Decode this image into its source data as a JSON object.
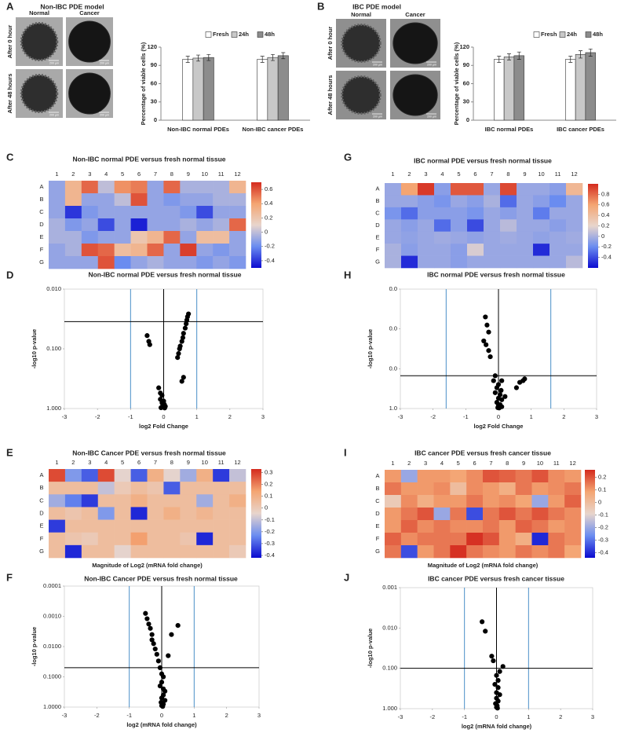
{
  "micrographs": [
    {
      "panel": "A",
      "title": "Non-IBC PDE model",
      "columns": [
        "Normal",
        "Cancer"
      ],
      "rows": [
        "After 0 hour",
        "After 48 hours"
      ],
      "scale_bar": "200 µm"
    },
    {
      "panel": "B",
      "title": "IBC PDE model",
      "columns": [
        "Normal",
        "Cancer"
      ],
      "rows": [
        "After 0 hour",
        "After 48 hours"
      ],
      "scale_bar": "200 µm"
    }
  ],
  "chart_data": [
    {
      "type": "bar",
      "ylabel": "Percentage of viable cells (%)",
      "categories": [
        "Non-IBC normal PDEs",
        "Non-IBC cancer PDEs"
      ],
      "series": [
        {
          "name": "Fresh",
          "color": "#ffffff",
          "values": [
            100,
            100
          ],
          "errors": [
            5,
            5
          ]
        },
        {
          "name": "24h",
          "color": "#c8c8c8",
          "values": [
            102,
            103
          ],
          "errors": [
            5,
            5
          ]
        },
        {
          "name": "48h",
          "color": "#8c8c8c",
          "values": [
            103,
            106
          ],
          "errors": [
            5,
            5
          ]
        }
      ],
      "ylim": [
        0,
        120
      ],
      "yticks": [
        0,
        30,
        60,
        90,
        120
      ],
      "legend": "top"
    },
    {
      "type": "bar",
      "ylabel": "Percentage of viable cells (%)",
      "categories": [
        "IBC normal PDEs",
        "IBC cancer PDEs"
      ],
      "series": [
        {
          "name": "Fresh",
          "color": "#ffffff",
          "values": [
            100,
            100
          ],
          "errors": [
            5,
            5
          ]
        },
        {
          "name": "24h",
          "color": "#c8c8c8",
          "values": [
            104,
            108
          ],
          "errors": [
            5,
            6
          ]
        },
        {
          "name": "48h",
          "color": "#8c8c8c",
          "values": [
            106,
            111
          ],
          "errors": [
            6,
            6
          ]
        }
      ],
      "ylim": [
        0,
        120
      ],
      "yticks": [
        0,
        30,
        60,
        90,
        120
      ],
      "legend": "top"
    },
    {
      "type": "heatmap",
      "panel": "C",
      "title": "Non-IBC normal PDE versus fresh normal tissue",
      "x_categories": [
        "1",
        "2",
        "3",
        "4",
        "5",
        "6",
        "7",
        "8",
        "9",
        "10",
        "11",
        "12"
      ],
      "y_categories": [
        "A",
        "B",
        "C",
        "D",
        "E",
        "F",
        "G"
      ],
      "z": [
        [
          -0.1,
          0.3,
          0.55,
          0.0,
          0.45,
          0.5,
          -0.1,
          0.55,
          -0.05,
          -0.05,
          -0.05,
          0.3
        ],
        [
          -0.1,
          0.3,
          -0.1,
          -0.1,
          0.0,
          0.6,
          -0.1,
          -0.15,
          -0.1,
          -0.1,
          -0.05,
          -0.05
        ],
        [
          -0.1,
          -0.4,
          -0.15,
          -0.1,
          -0.1,
          -0.1,
          -0.1,
          -0.1,
          -0.15,
          -0.35,
          -0.1,
          -0.1
        ],
        [
          -0.05,
          -0.15,
          -0.1,
          -0.35,
          -0.1,
          -0.45,
          -0.1,
          -0.1,
          -0.05,
          -0.1,
          -0.05,
          0.55
        ],
        [
          -0.05,
          -0.05,
          -0.15,
          -0.1,
          -0.1,
          0.2,
          0.3,
          0.55,
          -0.1,
          0.25,
          0.25,
          -0.1
        ],
        [
          -0.1,
          -0.05,
          0.6,
          0.55,
          0.25,
          0.3,
          0.55,
          -0.1,
          0.65,
          -0.1,
          -0.15,
          -0.1
        ],
        [
          -0.1,
          -0.1,
          -0.1,
          0.6,
          -0.2,
          -0.1,
          -0.05,
          -0.1,
          -0.1,
          -0.15,
          -0.1,
          -0.15
        ]
      ],
      "zlim": [
        -0.5,
        0.7
      ],
      "zticks": [
        0.6,
        0.4,
        0.2,
        0,
        -0.2,
        -0.4
      ],
      "colormap": [
        "#0b0bd0",
        "#6a8cf0",
        "#e8d5cc",
        "#f4a572",
        "#d42a1e"
      ]
    },
    {
      "type": "heatmap",
      "panel": "G",
      "title": "IBC normal PDE versus fresh normal tissue",
      "x_categories": [
        "1",
        "2",
        "3",
        "4",
        "5",
        "6",
        "7",
        "8",
        "9",
        "10",
        "11",
        "12"
      ],
      "y_categories": [
        "A",
        "B",
        "C",
        "D",
        "E",
        "F",
        "G"
      ],
      "z": [
        [
          -0.05,
          0.6,
          0.95,
          -0.1,
          0.85,
          0.85,
          -0.05,
          0.9,
          -0.05,
          -0.05,
          -0.1,
          0.45
        ],
        [
          -0.05,
          -0.05,
          -0.1,
          -0.15,
          -0.05,
          -0.1,
          0.0,
          -0.3,
          -0.05,
          -0.1,
          -0.2,
          -0.05
        ],
        [
          -0.15,
          -0.3,
          -0.1,
          -0.1,
          -0.1,
          -0.15,
          -0.05,
          -0.1,
          -0.05,
          -0.25,
          -0.05,
          -0.05
        ],
        [
          -0.05,
          -0.1,
          -0.05,
          -0.3,
          -0.1,
          -0.4,
          -0.05,
          0.05,
          -0.05,
          -0.05,
          -0.1,
          -0.05
        ],
        [
          -0.05,
          -0.08,
          -0.05,
          -0.03,
          -0.05,
          -0.08,
          -0.05,
          -0.03,
          -0.05,
          -0.08,
          -0.05,
          -0.03
        ],
        [
          0.0,
          -0.1,
          -0.05,
          -0.05,
          -0.1,
          0.15,
          -0.05,
          -0.05,
          -0.05,
          -0.5,
          -0.05,
          -0.05
        ],
        [
          0.0,
          -0.5,
          -0.05,
          -0.05,
          -0.1,
          -0.05,
          -0.05,
          -0.05,
          -0.05,
          -0.05,
          -0.05,
          0.05
        ]
      ],
      "zlim": [
        -0.6,
        1.0
      ],
      "zticks": [
        0.8,
        0.6,
        0.4,
        0.2,
        0,
        -0.2,
        -0.4
      ],
      "colormap": [
        "#0b0bd0",
        "#6a8cf0",
        "#e8d5cc",
        "#f4a572",
        "#d42a1e"
      ]
    },
    {
      "type": "scatter",
      "panel": "D",
      "title": "Non-IBC normal PDE versus fresh normal tissue",
      "xlabel": "log2 Fold Change",
      "ylabel": "-log10 p-value",
      "color": "#000000",
      "x": [
        0.75,
        0.72,
        0.7,
        0.68,
        0.65,
        0.6,
        0.58,
        0.55,
        0.5,
        0.48,
        0.45,
        0.42,
        0.6,
        0.55,
        -0.5,
        -0.45,
        -0.42,
        -0.15,
        -0.1,
        -0.05,
        -0.1,
        0.0,
        -0.05,
        0.02,
        -0.03,
        0.05,
        0.0,
        -0.08,
        0.03
      ],
      "y": [
        0.026,
        0.029,
        0.033,
        0.038,
        0.045,
        0.055,
        0.065,
        0.075,
        0.09,
        0.1,
        0.12,
        0.14,
        0.3,
        0.35,
        0.06,
        0.075,
        0.085,
        0.45,
        0.55,
        0.6,
        0.7,
        0.75,
        0.8,
        0.85,
        0.9,
        0.92,
        0.95,
        0.97,
        0.98
      ],
      "xlim": [
        -3,
        3
      ],
      "xticks": [
        -3,
        -2,
        -1,
        0,
        1,
        2,
        3
      ],
      "ylim": [
        0.01,
        1
      ],
      "y_reversed": true,
      "yscale": "log",
      "yticks": [
        {
          "value": 0.01,
          "label": "0.010"
        },
        {
          "value": 0.1,
          "label": "0.100"
        },
        {
          "value": 1,
          "label": "1.000"
        }
      ],
      "vlines": [
        -1,
        0,
        1
      ],
      "vline_colors": [
        "#4a8fc8",
        "#000000",
        "#4a8fc8"
      ],
      "hlines": [
        0.035
      ],
      "hline_color": "#000000"
    },
    {
      "type": "scatter",
      "panel": "H",
      "title": "IBC normal PDE versus fresh normal tissue",
      "xlabel": "log2 Fold Change",
      "ylabel": "-log10 p-value",
      "color": "#000000",
      "x": [
        -0.4,
        -0.35,
        -0.3,
        -0.45,
        -0.38,
        -0.3,
        -0.25,
        -0.1,
        -0.15,
        0.0,
        -0.05,
        0.1,
        0.08,
        -0.1,
        0.05,
        0.0,
        0.1,
        -0.05,
        0.05,
        0.0,
        0.1,
        -0.02,
        0.02,
        0.55,
        0.65,
        0.75,
        0.8,
        0.2
      ],
      "y": [
        0.005,
        0.008,
        0.012,
        0.02,
        0.025,
        0.035,
        0.05,
        0.15,
        0.2,
        0.25,
        0.3,
        0.2,
        0.35,
        0.4,
        0.45,
        0.55,
        0.6,
        0.7,
        0.8,
        0.85,
        0.9,
        0.95,
        0.97,
        0.3,
        0.22,
        0.2,
        0.18,
        0.5
      ],
      "xlim": [
        -3,
        3
      ],
      "xticks": [
        -3,
        -2,
        -1,
        0,
        1,
        2,
        3
      ],
      "ylim": [
        0.001,
        1
      ],
      "y_reversed": true,
      "yscale": "log",
      "yticks": [
        {
          "value": 0.001,
          "label": "0.0"
        },
        {
          "value": 0.01,
          "label": "0.0"
        },
        {
          "value": 0.1,
          "label": "0.0"
        },
        {
          "value": 1,
          "label": "1.0"
        }
      ],
      "vlines": [
        -1.6,
        0,
        1.6
      ],
      "vline_colors": [
        "#4a8fc8",
        "#000000",
        "#4a8fc8"
      ],
      "hlines": [
        0.15
      ],
      "hline_color": "#000000"
    },
    {
      "type": "heatmap",
      "panel": "E",
      "title": "Non-IBC Cancer PDE versus fresh normal tissue",
      "xlabel": "Magnitude of Log2 (mRNA fold change)",
      "x_categories": [
        "1",
        "2",
        "3",
        "4",
        "5",
        "6",
        "7",
        "8",
        "9",
        "10",
        "11",
        "12"
      ],
      "y_categories": [
        "A",
        "B",
        "C",
        "D",
        "E",
        "F",
        "G"
      ],
      "z": [
        [
          0.28,
          -0.2,
          -0.3,
          0.28,
          -0.05,
          -0.3,
          0.1,
          -0.05,
          -0.15,
          0.1,
          -0.35,
          -0.1
        ],
        [
          0.05,
          0.05,
          0.05,
          -0.1,
          0.0,
          0.05,
          0.02,
          -0.3,
          0.05,
          0.05,
          0.05,
          0.05
        ],
        [
          -0.15,
          -0.25,
          -0.35,
          0.05,
          0.05,
          0.1,
          0.05,
          0.05,
          0.05,
          -0.15,
          0.05,
          0.1
        ],
        [
          0.05,
          0.02,
          0.05,
          -0.2,
          0.05,
          -0.38,
          0.05,
          0.1,
          0.05,
          0.08,
          0.05,
          0.05
        ],
        [
          -0.35,
          0.05,
          0.05,
          0.05,
          0.05,
          0.05,
          0.05,
          0.05,
          0.05,
          0.05,
          0.05,
          0.05
        ],
        [
          0.05,
          0.02,
          0.0,
          0.05,
          0.05,
          0.15,
          0.05,
          0.05,
          0.02,
          -0.38,
          0.05,
          0.05
        ],
        [
          0.05,
          -0.38,
          0.05,
          0.05,
          -0.05,
          0.05,
          0.05,
          0.05,
          0.05,
          0.05,
          0.05,
          0.0
        ]
      ],
      "zlim": [
        -0.42,
        0.33
      ],
      "zticks": [
        0.3,
        0.2,
        0.1,
        0,
        -0.1,
        -0.2,
        -0.3,
        -0.4
      ],
      "colormap": [
        "#0b0bd0",
        "#6a8cf0",
        "#e8d5cc",
        "#f4a572",
        "#d42a1e"
      ]
    },
    {
      "type": "heatmap",
      "panel": "I",
      "title": "IBC cancer PDE versus fresh cancer tissue",
      "xlabel": "Magnitude of Log2 (mRNA fold change)",
      "x_categories": [
        "1",
        "2",
        "3",
        "4",
        "5",
        "6",
        "7",
        "8",
        "9",
        "10",
        "11",
        "12"
      ],
      "y_categories": [
        "A",
        "B",
        "C",
        "D",
        "E",
        "F",
        "G"
      ],
      "z": [
        [
          0.1,
          -0.2,
          0.1,
          0.1,
          0.08,
          0.12,
          0.2,
          0.18,
          0.15,
          0.2,
          0.12,
          0.1
        ],
        [
          0.15,
          0.1,
          0.1,
          0.12,
          0.0,
          0.12,
          0.1,
          0.05,
          0.15,
          0.1,
          0.12,
          0.15
        ],
        [
          -0.05,
          0.12,
          0.05,
          0.1,
          0.1,
          0.15,
          0.1,
          0.12,
          0.08,
          -0.2,
          0.1,
          0.18
        ],
        [
          0.1,
          0.15,
          0.2,
          -0.2,
          0.15,
          -0.35,
          0.15,
          0.2,
          0.15,
          0.2,
          0.15,
          0.12
        ],
        [
          0.1,
          0.18,
          0.12,
          0.15,
          0.12,
          0.12,
          0.15,
          0.1,
          0.18,
          0.15,
          0.1,
          0.12
        ],
        [
          0.18,
          0.12,
          0.15,
          0.15,
          0.15,
          0.25,
          0.2,
          0.1,
          0.05,
          -0.4,
          0.15,
          0.12
        ],
        [
          0.15,
          -0.35,
          0.1,
          0.15,
          0.25,
          0.15,
          0.12,
          0.1,
          0.15,
          0.12,
          0.15,
          0.08
        ]
      ],
      "zlim": [
        -0.44,
        0.26
      ],
      "zticks": [
        0.2,
        0.1,
        0,
        -0.1,
        -0.2,
        -0.3,
        -0.4
      ],
      "colormap": [
        "#0b0bd0",
        "#6a8cf0",
        "#e8d5cc",
        "#f4a572",
        "#d42a1e"
      ]
    },
    {
      "type": "scatter",
      "panel": "F",
      "title": "Non-IBC Cancer PDE versus fresh normal tissue",
      "xlabel": "log2 (mRNA fold change)",
      "ylabel": "-log10 p-value",
      "color": "#000000",
      "x": [
        -0.5,
        -0.45,
        -0.4,
        -0.35,
        -0.3,
        -0.3,
        -0.25,
        -0.2,
        -0.15,
        0.5,
        0.3,
        0.2,
        -0.1,
        -0.05,
        0.0,
        0.05,
        0.0,
        -0.05,
        0.05,
        0.1,
        0.05,
        0.0,
        0.1,
        -0.02,
        0.05,
        0.0,
        0.03
      ],
      "y": [
        0.0008,
        0.0012,
        0.0018,
        0.0025,
        0.004,
        0.006,
        0.008,
        0.012,
        0.018,
        0.002,
        0.004,
        0.02,
        0.03,
        0.05,
        0.08,
        0.1,
        0.15,
        0.2,
        0.25,
        0.3,
        0.4,
        0.5,
        0.6,
        0.7,
        0.8,
        0.9,
        0.95
      ],
      "xlim": [
        -3,
        3
      ],
      "xticks": [
        -3,
        -2,
        -1,
        0,
        1,
        2,
        3
      ],
      "ylim": [
        0.0001,
        1
      ],
      "y_reversed": true,
      "yscale": "log",
      "yticks": [
        {
          "value": 0.0001,
          "label": "0.0001"
        },
        {
          "value": 0.001,
          "label": "0.0010"
        },
        {
          "value": 0.01,
          "label": "0.0100"
        },
        {
          "value": 0.1,
          "label": "0.1000"
        },
        {
          "value": 1,
          "label": "1.0000"
        }
      ],
      "vlines": [
        -1,
        0,
        1
      ],
      "vline_colors": [
        "#4a8fc8",
        "#000000",
        "#4a8fc8"
      ],
      "hlines": [
        0.05
      ],
      "hline_color": "#000000"
    },
    {
      "type": "scatter",
      "panel": "J",
      "title": "IBC cancer PDE versus fresh cancer tissue",
      "xlabel": "log2 (mRNA fold change)",
      "ylabel": "-log10 p-value",
      "color": "#000000",
      "x": [
        -0.45,
        -0.35,
        -0.15,
        -0.1,
        0.2,
        0.1,
        0.0,
        0.05,
        -0.05,
        0.05,
        0.0,
        0.1,
        0.0,
        0.05,
        -0.03,
        0.02,
        0.0,
        0.03
      ],
      "y": [
        0.007,
        0.012,
        0.05,
        0.065,
        0.09,
        0.12,
        0.15,
        0.2,
        0.25,
        0.3,
        0.4,
        0.45,
        0.55,
        0.65,
        0.75,
        0.85,
        0.92,
        0.97
      ],
      "xlim": [
        -3,
        3
      ],
      "xticks": [
        -3,
        -2,
        -1,
        0,
        1,
        2,
        3
      ],
      "ylim": [
        0.001,
        1
      ],
      "y_reversed": true,
      "yscale": "log",
      "yticks": [
        {
          "value": 0.001,
          "label": "0.001"
        },
        {
          "value": 0.01,
          "label": "0.010"
        },
        {
          "value": 0.1,
          "label": "0.100"
        },
        {
          "value": 1,
          "label": "1.000"
        }
      ],
      "vlines": [
        -1,
        0,
        1
      ],
      "vline_colors": [
        "#4a8fc8",
        "#000000",
        "#4a8fc8"
      ],
      "hlines": [
        0.1
      ],
      "hline_color": "#000000"
    }
  ]
}
